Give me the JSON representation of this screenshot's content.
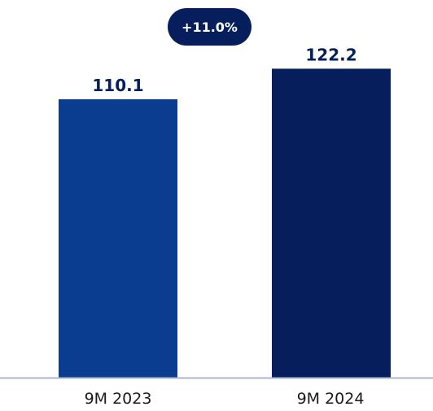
{
  "chart_data": {
    "type": "bar",
    "categories": [
      "9M 2023",
      "9M 2024"
    ],
    "values": [
      110.1,
      122.2
    ],
    "value_labels": [
      "110.1",
      "122.2"
    ],
    "title": "",
    "xlabel": "",
    "ylabel": "",
    "ylim": [
      0,
      130
    ],
    "grid": false,
    "legend": "none",
    "colors": [
      "#0a3d8f",
      "#061f5c"
    ],
    "annotation": {
      "text": "+11.0%",
      "color": "#061f5c"
    },
    "axis_color": "#aab6cf"
  }
}
